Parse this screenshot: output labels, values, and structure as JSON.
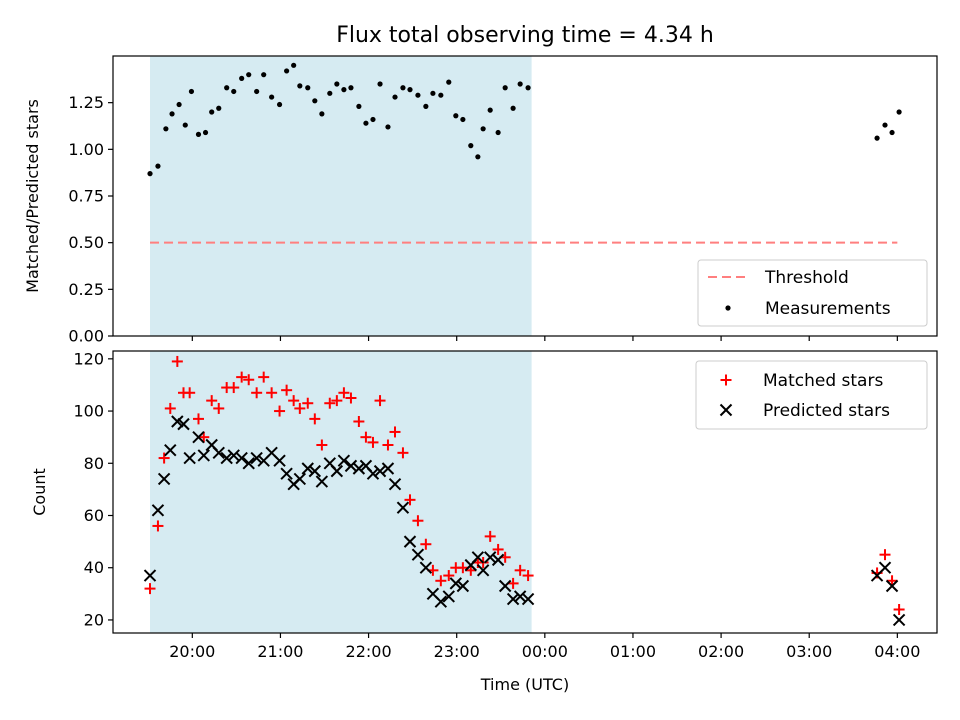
{
  "colors": {
    "shade": "#add8e6",
    "threshold": "#ff7f7f",
    "measurements": "#000000",
    "matched": "#ff0000",
    "predicted": "#000000"
  },
  "chart_data": [
    {
      "type": "scatter",
      "title": "Flux total observing time = 4.34 h",
      "xlabel": "",
      "ylabel": "Matched/Predicted stars",
      "ylim": [
        0.0,
        1.5
      ],
      "yticks": [
        "0.00",
        "0.25",
        "0.50",
        "0.75",
        "1.00",
        "1.25"
      ],
      "xlim_hours": [
        19.1,
        28.45
      ],
      "shaded_span_hours": [
        19.52,
        23.85
      ],
      "threshold": {
        "name": "Threshold",
        "y": 0.5,
        "x_start_hours": 19.52,
        "x_end_hours": 28.0
      },
      "legend": {
        "placement": "lower-right",
        "entries": [
          "Threshold",
          "Measurements"
        ]
      },
      "series": [
        {
          "name": "Measurements",
          "points": [
            [
              19.52,
              0.87
            ],
            [
              19.61,
              0.91
            ],
            [
              19.7,
              1.11
            ],
            [
              19.77,
              1.19
            ],
            [
              19.85,
              1.24
            ],
            [
              19.92,
              1.13
            ],
            [
              19.99,
              1.31
            ],
            [
              20.07,
              1.08
            ],
            [
              20.15,
              1.09
            ],
            [
              20.22,
              1.2
            ],
            [
              20.3,
              1.22
            ],
            [
              20.39,
              1.33
            ],
            [
              20.47,
              1.31
            ],
            [
              20.56,
              1.38
            ],
            [
              20.64,
              1.4
            ],
            [
              20.73,
              1.31
            ],
            [
              20.81,
              1.4
            ],
            [
              20.9,
              1.28
            ],
            [
              20.99,
              1.24
            ],
            [
              21.07,
              1.42
            ],
            [
              21.15,
              1.45
            ],
            [
              21.22,
              1.34
            ],
            [
              21.31,
              1.33
            ],
            [
              21.39,
              1.26
            ],
            [
              21.47,
              1.19
            ],
            [
              21.56,
              1.3
            ],
            [
              21.64,
              1.35
            ],
            [
              21.72,
              1.32
            ],
            [
              21.8,
              1.33
            ],
            [
              21.89,
              1.23
            ],
            [
              21.97,
              1.14
            ],
            [
              22.05,
              1.16
            ],
            [
              22.13,
              1.35
            ],
            [
              22.22,
              1.12
            ],
            [
              22.3,
              1.28
            ],
            [
              22.39,
              1.33
            ],
            [
              22.47,
              1.32
            ],
            [
              22.56,
              1.29
            ],
            [
              22.65,
              1.23
            ],
            [
              22.73,
              1.3
            ],
            [
              22.82,
              1.29
            ],
            [
              22.91,
              1.36
            ],
            [
              22.99,
              1.18
            ],
            [
              23.07,
              1.16
            ],
            [
              23.16,
              1.02
            ],
            [
              23.24,
              0.96
            ],
            [
              23.3,
              1.11
            ],
            [
              23.38,
              1.21
            ],
            [
              23.47,
              1.09
            ],
            [
              23.55,
              1.33
            ],
            [
              23.64,
              1.22
            ],
            [
              23.72,
              1.35
            ],
            [
              23.81,
              1.33
            ],
            [
              27.77,
              1.06
            ],
            [
              27.86,
              1.13
            ],
            [
              27.94,
              1.09
            ],
            [
              28.02,
              1.2
            ]
          ]
        }
      ]
    },
    {
      "type": "scatter",
      "title": "",
      "xlabel": "Time (UTC)",
      "ylabel": "Count",
      "ylim": [
        15,
        123
      ],
      "yticks": [
        "20",
        "40",
        "60",
        "80",
        "100",
        "120"
      ],
      "xticks": [
        "20:00",
        "21:00",
        "22:00",
        "23:00",
        "00:00",
        "01:00",
        "02:00",
        "03:00",
        "04:00"
      ],
      "xlim_hours": [
        19.1,
        28.45
      ],
      "shaded_span_hours": [
        19.52,
        23.85
      ],
      "legend": {
        "placement": "upper-right",
        "entries": [
          "Matched stars",
          "Predicted stars"
        ]
      },
      "series": [
        {
          "name": "Matched stars",
          "points": [
            [
              19.52,
              32
            ],
            [
              19.61,
              56
            ],
            [
              19.68,
              82
            ],
            [
              19.75,
              101
            ],
            [
              19.83,
              119
            ],
            [
              19.9,
              107
            ],
            [
              19.97,
              107
            ],
            [
              20.07,
              97
            ],
            [
              20.13,
              90
            ],
            [
              20.22,
              104
            ],
            [
              20.3,
              101
            ],
            [
              20.39,
              109
            ],
            [
              20.47,
              109
            ],
            [
              20.56,
              113
            ],
            [
              20.64,
              112
            ],
            [
              20.73,
              107
            ],
            [
              20.81,
              113
            ],
            [
              20.9,
              107
            ],
            [
              20.99,
              100
            ],
            [
              21.07,
              108
            ],
            [
              21.15,
              104
            ],
            [
              21.22,
              101
            ],
            [
              21.31,
              103
            ],
            [
              21.39,
              97
            ],
            [
              21.47,
              87
            ],
            [
              21.56,
              103
            ],
            [
              21.64,
              104
            ],
            [
              21.72,
              107
            ],
            [
              21.8,
              105
            ],
            [
              21.89,
              96
            ],
            [
              21.97,
              90
            ],
            [
              22.05,
              88
            ],
            [
              22.13,
              104
            ],
            [
              22.22,
              87
            ],
            [
              22.3,
              92
            ],
            [
              22.39,
              84
            ],
            [
              22.47,
              66
            ],
            [
              22.56,
              58
            ],
            [
              22.65,
              49
            ],
            [
              22.73,
              39
            ],
            [
              22.82,
              35
            ],
            [
              22.91,
              37
            ],
            [
              22.99,
              40
            ],
            [
              23.07,
              40
            ],
            [
              23.16,
              39
            ],
            [
              23.24,
              42
            ],
            [
              23.3,
              42
            ],
            [
              23.38,
              52
            ],
            [
              23.47,
              47
            ],
            [
              23.55,
              44
            ],
            [
              23.64,
              34
            ],
            [
              23.72,
              39
            ],
            [
              23.81,
              37
            ],
            [
              27.77,
              38
            ],
            [
              27.86,
              45
            ],
            [
              27.94,
              35
            ],
            [
              28.02,
              24
            ]
          ]
        },
        {
          "name": "Predicted stars",
          "points": [
            [
              19.52,
              37
            ],
            [
              19.61,
              62
            ],
            [
              19.68,
              74
            ],
            [
              19.75,
              85
            ],
            [
              19.83,
              96
            ],
            [
              19.9,
              95
            ],
            [
              19.97,
              82
            ],
            [
              20.07,
              90
            ],
            [
              20.13,
              83
            ],
            [
              20.22,
              87
            ],
            [
              20.3,
              84
            ],
            [
              20.39,
              82
            ],
            [
              20.47,
              83
            ],
            [
              20.56,
              82
            ],
            [
              20.64,
              80
            ],
            [
              20.73,
              82
            ],
            [
              20.81,
              81
            ],
            [
              20.9,
              84
            ],
            [
              20.99,
              81
            ],
            [
              21.07,
              76
            ],
            [
              21.15,
              72
            ],
            [
              21.22,
              74
            ],
            [
              21.31,
              78
            ],
            [
              21.39,
              77
            ],
            [
              21.47,
              73
            ],
            [
              21.56,
              80
            ],
            [
              21.64,
              77
            ],
            [
              21.72,
              81
            ],
            [
              21.8,
              79
            ],
            [
              21.89,
              78
            ],
            [
              21.97,
              79
            ],
            [
              22.05,
              76
            ],
            [
              22.13,
              77
            ],
            [
              22.22,
              78
            ],
            [
              22.3,
              72
            ],
            [
              22.39,
              63
            ],
            [
              22.47,
              50
            ],
            [
              22.56,
              45
            ],
            [
              22.65,
              40
            ],
            [
              22.73,
              30
            ],
            [
              22.82,
              27
            ],
            [
              22.91,
              29
            ],
            [
              22.99,
              34
            ],
            [
              23.07,
              33
            ],
            [
              23.16,
              41
            ],
            [
              23.24,
              44
            ],
            [
              23.3,
              39
            ],
            [
              23.38,
              44
            ],
            [
              23.47,
              43
            ],
            [
              23.55,
              33
            ],
            [
              23.64,
              28
            ],
            [
              23.72,
              29
            ],
            [
              23.81,
              28
            ],
            [
              27.77,
              37
            ],
            [
              27.86,
              40
            ],
            [
              27.94,
              33
            ],
            [
              28.02,
              20
            ]
          ]
        }
      ]
    }
  ]
}
